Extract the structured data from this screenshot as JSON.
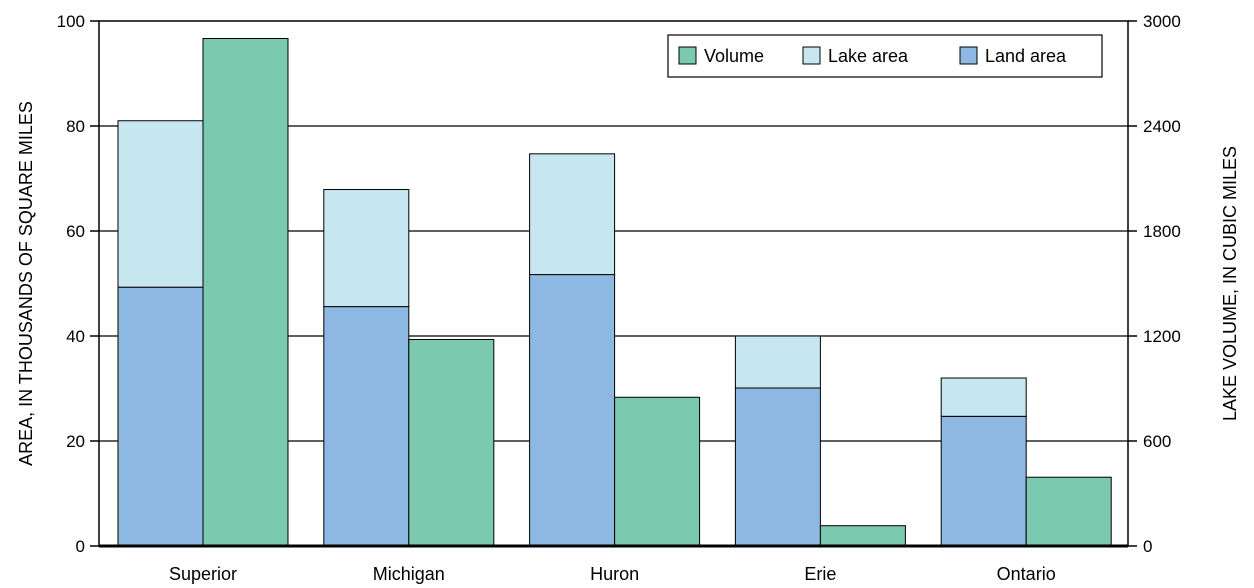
{
  "chart_data": {
    "type": "bar",
    "categories": [
      "Superior",
      "Michigan",
      "Huron",
      "Erie",
      "Ontario"
    ],
    "series": [
      {
        "name": "Land area",
        "axis": "left",
        "stack": "area",
        "color": "#8db8e2",
        "values": [
          49.3,
          45.6,
          51.7,
          30.1,
          24.7
        ]
      },
      {
        "name": "Lake area",
        "axis": "left",
        "stack": "area",
        "color": "#c7e7f0",
        "values": [
          31.7,
          22.3,
          23.0,
          9.9,
          7.3
        ]
      },
      {
        "name": "Volume",
        "axis": "right",
        "stack": "volume",
        "color": "#7bc9ae",
        "values": [
          2900,
          1180,
          850,
          116,
          393
        ]
      }
    ],
    "ylabel": "AREA, IN THOUSANDS OF SQUARE MILES",
    "ylim": [
      0,
      100
    ],
    "yticks": [
      "0",
      "20",
      "40",
      "60",
      "80",
      "100"
    ],
    "y2label": "LAKE VOLUME, IN CUBIC MILES",
    "y2lim": [
      0,
      3000
    ],
    "y2ticks": [
      "0",
      "600",
      "1200",
      "1800",
      "2400",
      "3000"
    ],
    "grid": true,
    "legend": {
      "placement": "top-right",
      "order": [
        "Volume",
        "Lake area",
        "Land area"
      ]
    }
  }
}
